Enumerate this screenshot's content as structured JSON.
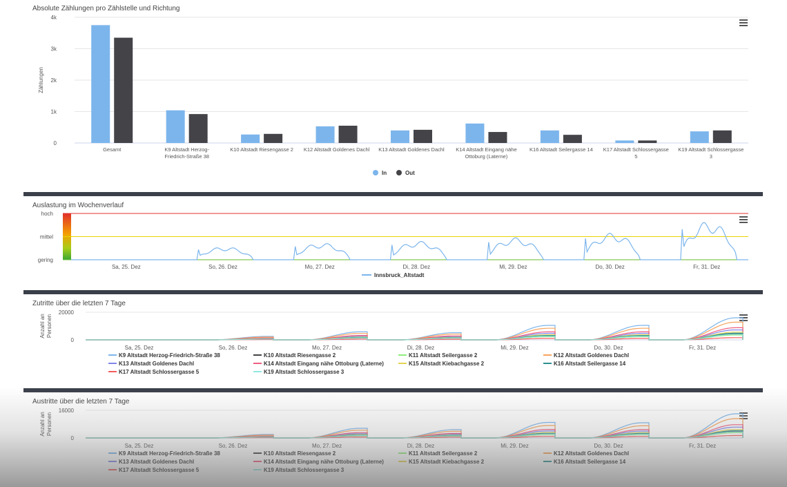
{
  "charts": {
    "bar": {
      "title": "Absolute Zählungen pro Zählstelle und Richtung",
      "ylabel": "Zählungen",
      "yticks": [
        "0",
        "1k",
        "2k",
        "3k",
        "4k"
      ],
      "ylim": [
        0,
        4000
      ],
      "categories": [
        [
          "Gesamt"
        ],
        [
          "K9 Altstadt Herzog-",
          "Friedrich-Straße 38"
        ],
        [
          "K10 Altstadt Riesengasse 2"
        ],
        [
          "K12 Altstadt Goldenes Dachl"
        ],
        [
          "K13 Altstadt Goldenes Dachl"
        ],
        [
          "K14 Altstadt Eingang nähe",
          "Ottoburg (Laterne)"
        ],
        [
          "K16 Altstadt Seilergasse 14"
        ],
        [
          "K17 Altstadt Schlossergasse",
          "5"
        ],
        [
          "K19 Altstadt Schlossergasse",
          "3"
        ]
      ],
      "series": [
        {
          "name": "In",
          "color": "#7cb5ec",
          "values": [
            3750,
            1040,
            270,
            530,
            400,
            620,
            400,
            80,
            370
          ]
        },
        {
          "name": "Out",
          "color": "#434348",
          "values": [
            3350,
            920,
            290,
            550,
            420,
            350,
            260,
            80,
            400
          ]
        }
      ]
    },
    "util": {
      "title": "Auslastung im Wochenverlauf",
      "levels": [
        "hoch",
        "mittel",
        "gering"
      ],
      "xticks": [
        "Sa, 25. Dez",
        "So, 26. Dez",
        "Mo, 27. Dez",
        "Di, 28. Dez",
        "Mi, 29. Dez",
        "Do, 30. Dez",
        "Fr, 31. Dez"
      ],
      "series_name": "Innsbruck_Altstadt",
      "line_color": "#7cb5ec",
      "day_peaks": [
        0.0,
        0.55,
        0.72,
        0.8,
        0.95,
        1.15,
        1.65
      ],
      "thresholds": {
        "hoch_color": "#e0302a",
        "mittel_color": "#e8d200",
        "gering_color": "#66b82e"
      }
    },
    "entries": {
      "title": "Zutritte über die letzten 7 Tage",
      "ylabel": "Anzahl an Personen",
      "yticks": [
        "0",
        "20000"
      ],
      "ymax": 20000,
      "xticks": [
        "Sa, 25. Dez",
        "So, 26. Dez",
        "Mo, 27. Dez",
        "Di, 28. Dez",
        "Mi, 29. Dez",
        "Do, 30. Dez",
        "Fr, 31. Dez"
      ]
    },
    "exits": {
      "title": "Austritte über die letzten 7 Tage",
      "ylabel": "Anzahl an Personen",
      "yticks": [
        "0",
        "16000"
      ],
      "ymax": 16000,
      "xticks": [
        "Sa, 25. Dez",
        "So, 26. Dez",
        "Mo, 27. Dez",
        "Di, 28. Dez",
        "Mi, 29. Dez",
        "Do, 30. Dez",
        "Fr, 31. Dez"
      ]
    },
    "cumulative_series": [
      {
        "name": "K9 Altstadt Herzog-Friedrich-Straße 38",
        "color": "#7cb5ec",
        "scale": 1.0
      },
      {
        "name": "K10 Altstadt Riesengasse 2",
        "color": "#434348",
        "scale": 0.28
      },
      {
        "name": "K11 Altstadt Seilergasse 2",
        "color": "#90ed7d",
        "scale": 0.22
      },
      {
        "name": "K12 Altstadt Goldenes Dachl",
        "color": "#f7a35c",
        "scale": 0.8
      },
      {
        "name": "K13 Altstadt Goldenes Dachl",
        "color": "#8085e9",
        "scale": 0.45
      },
      {
        "name": "K14 Altstadt Eingang nähe Ottoburg (Laterne)",
        "color": "#f15c80",
        "scale": 0.55
      },
      {
        "name": "K15 Altstadt Kiebachgasse 2",
        "color": "#e4d354",
        "scale": 0.35
      },
      {
        "name": "K16 Altstadt Seilergasse 14",
        "color": "#2b908f",
        "scale": 0.3
      },
      {
        "name": "K17 Altstadt Schlossergasse 5",
        "color": "#f45b5b",
        "scale": 0.1
      },
      {
        "name": "K19 Altstadt Schlossergasse 3",
        "color": "#91e8e1",
        "scale": 0.25
      }
    ],
    "day_totals_entries": [
      0,
      2500,
      5800,
      5200,
      10500,
      10500,
      16000
    ],
    "day_totals_exits": [
      0,
      2000,
      5600,
      4800,
      9000,
      8800,
      14000
    ]
  }
}
